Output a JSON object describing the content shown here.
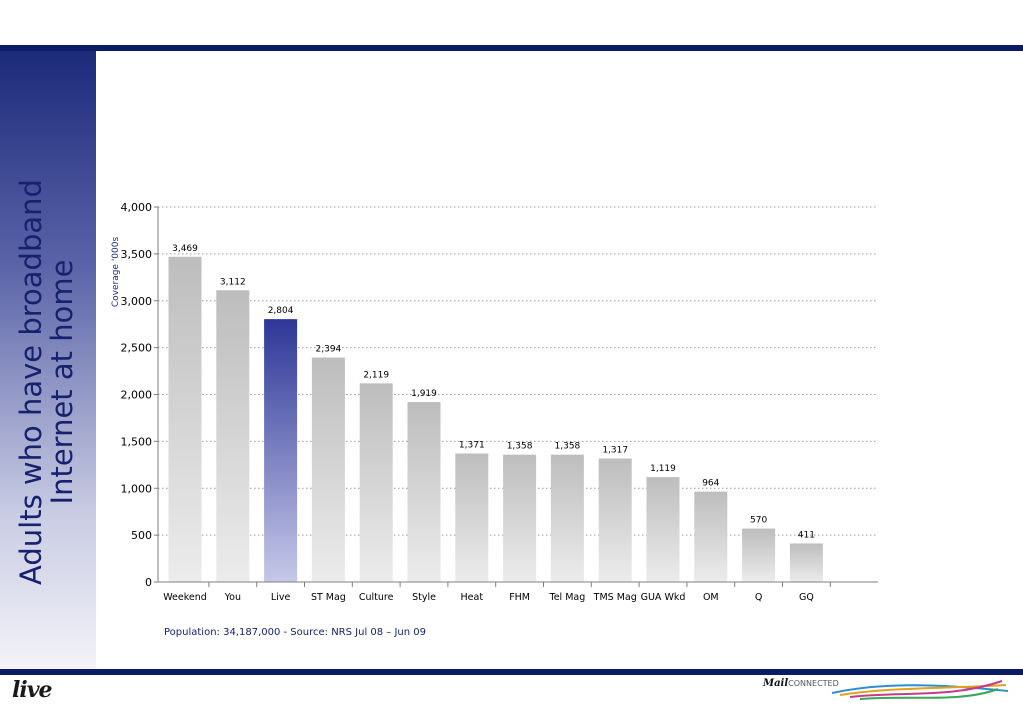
{
  "slide": {
    "title": "Adults who have broadband\nInternet at home",
    "source_note": "Population: 34,187,000 - Source: NRS Jul 08 – Jun 09",
    "footer_left_logo": "live",
    "footer_right_logo_bold": "Mail",
    "footer_right_logo_light": "CONNECTED"
  },
  "colors": {
    "brand_navy": "#0b1a6b",
    "highlight_bar": "#2e3798",
    "default_bar": "#bfbfbf"
  },
  "chart_data": {
    "type": "bar",
    "title": "",
    "xlabel": "",
    "ylabel": "Coverage '000s",
    "ylim": [
      0,
      4000
    ],
    "yticks": [
      0,
      500,
      1000,
      1500,
      2000,
      2500,
      3000,
      3500,
      4000
    ],
    "ytick_labels": [
      "0",
      "500",
      "1,000",
      "1,500",
      "2,000",
      "2,500",
      "3,000",
      "3,500",
      "4,000"
    ],
    "grid": true,
    "categories": [
      "Weekend",
      "You",
      "Live",
      "ST Mag",
      "Culture",
      "Style",
      "Heat",
      "FHM",
      "Tel Mag",
      "TMS Mag",
      "GUA Wkd",
      "OM",
      "Q",
      "GQ"
    ],
    "values": [
      3469,
      3112,
      2804,
      2394,
      2119,
      1919,
      1371,
      1358,
      1358,
      1317,
      1119,
      964,
      570,
      411
    ],
    "value_labels": [
      "3,469",
      "3,112",
      "2,804",
      "2,394",
      "2,119",
      "1,919",
      "1,371",
      "1,358",
      "1,358",
      "1,317",
      "1,119",
      "964",
      "570",
      "411"
    ],
    "highlight": "Live"
  }
}
